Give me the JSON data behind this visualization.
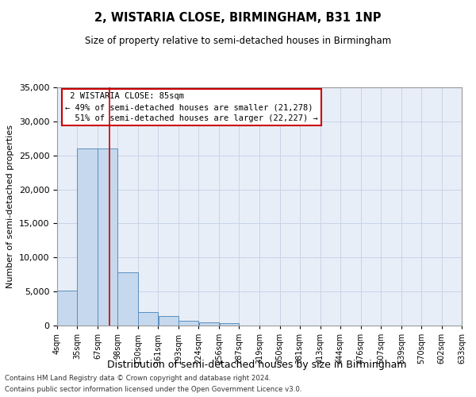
{
  "title": "2, WISTARIA CLOSE, BIRMINGHAM, B31 1NP",
  "subtitle": "Size of property relative to semi-detached houses in Birmingham",
  "xlabel": "Distribution of semi-detached houses by size in Birmingham",
  "ylabel": "Number of semi-detached properties",
  "footer1": "Contains HM Land Registry data © Crown copyright and database right 2024.",
  "footer2": "Contains public sector information licensed under the Open Government Licence v3.0.",
  "property_label": "2 WISTARIA CLOSE: 85sqm",
  "smaller_pct": 49,
  "smaller_count": 21278,
  "larger_pct": 51,
  "larger_count": 22227,
  "bin_edges": [
    4,
    35,
    67,
    98,
    130,
    161,
    193,
    224,
    256,
    287,
    319,
    350,
    381,
    413,
    444,
    476,
    507,
    539,
    570,
    602,
    633
  ],
  "bin_labels": [
    "4sqm",
    "35sqm",
    "67sqm",
    "98sqm",
    "130sqm",
    "161sqm",
    "193sqm",
    "224sqm",
    "256sqm",
    "287sqm",
    "319sqm",
    "350sqm",
    "381sqm",
    "413sqm",
    "444sqm",
    "476sqm",
    "507sqm",
    "539sqm",
    "570sqm",
    "602sqm",
    "633sqm"
  ],
  "bar_heights": [
    5100,
    26000,
    26000,
    7800,
    2000,
    1400,
    700,
    500,
    300,
    0,
    0,
    0,
    0,
    0,
    0,
    0,
    0,
    0,
    0,
    0
  ],
  "bar_color": "#c5d8ed",
  "bar_edge_color": "#5a8fc0",
  "grid_color": "#c8d4e6",
  "bg_color": "#e8eef8",
  "vline_x": 85,
  "vline_color": "#cc0000",
  "annotation_box_color": "#cc0000",
  "ylim": [
    0,
    35000
  ],
  "yticks": [
    0,
    5000,
    10000,
    15000,
    20000,
    25000,
    30000,
    35000
  ]
}
